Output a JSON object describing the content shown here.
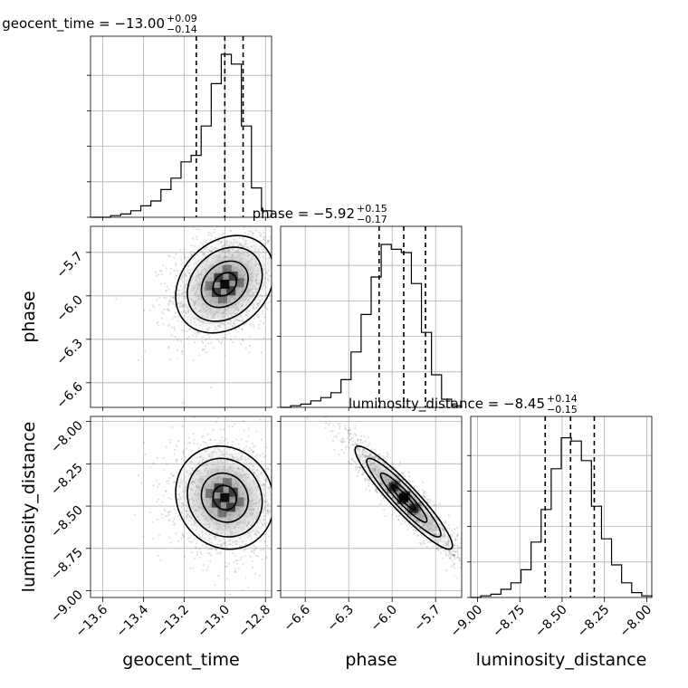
{
  "chart_data": {
    "type": "corner",
    "parameters": [
      "geocent_time",
      "phase",
      "luminosity_distance"
    ],
    "titles": [
      {
        "param": "geocent_time",
        "prefix": "geocent_time = ",
        "median": "−13.00",
        "upper": "+0.09",
        "lower": "−0.14"
      },
      {
        "param": "phase",
        "prefix": "phase = ",
        "median": "−5.92",
        "upper": "+0.15",
        "lower": "−0.17"
      },
      {
        "param": "luminosity_distance",
        "prefix": "luminosity_distance = ",
        "median": "−8.45",
        "upper": "+0.14",
        "lower": "−0.15"
      }
    ],
    "ranges": {
      "geocent_time": [
        -13.66,
        -12.77
      ],
      "phase": [
        -6.77,
        -5.52
      ],
      "luminosity_distance": [
        -9.04,
        -7.97
      ]
    },
    "ticks": {
      "geocent_time": {
        "values": [
          -13.6,
          -13.4,
          -13.2,
          -13.0,
          -12.8
        ],
        "labels": [
          "−13.6",
          "−13.4",
          "−13.2",
          "−13.0",
          "−12.8"
        ]
      },
      "phase": {
        "values": [
          -6.6,
          -6.3,
          -6.0,
          -5.7
        ],
        "labels": [
          "−6.6",
          "−6.3",
          "−6.0",
          "−5.7"
        ]
      },
      "luminosity_distance": {
        "values": [
          -9.0,
          -8.75,
          -8.5,
          -8.25,
          -8.0
        ],
        "labels": [
          "−9.00",
          "−8.75",
          "−8.50",
          "−8.25",
          "−8.00"
        ]
      }
    },
    "quantiles": {
      "geocent_time": [
        -13.14,
        -13.0,
        -12.91
      ],
      "phase": [
        -6.09,
        -5.92,
        -5.77
      ],
      "luminosity_distance": [
        -8.6,
        -8.45,
        -8.31
      ]
    },
    "histograms": {
      "geocent_time": [
        0,
        0,
        0.01,
        0.02,
        0.04,
        0.07,
        0.1,
        0.17,
        0.24,
        0.34,
        0.38,
        0.56,
        0.82,
        1.0,
        0.94,
        0.56,
        0.18,
        0.04
      ],
      "phase": [
        0,
        0.01,
        0.02,
        0.04,
        0.06,
        0.09,
        0.17,
        0.34,
        0.57,
        0.8,
        1.0,
        0.97,
        0.95,
        0.76,
        0.46,
        0.2,
        0.05,
        0.01
      ],
      "luminosity_distance": [
        0,
        0.01,
        0.02,
        0.05,
        0.09,
        0.17,
        0.34,
        0.54,
        0.79,
        0.98,
        0.96,
        0.84,
        0.56,
        0.36,
        0.2,
        0.09,
        0.03,
        0.01
      ]
    },
    "correlations": {
      "phase|geocent_time": 0.25,
      "luminosity_distance|geocent_time": -0.1,
      "luminosity_distance|phase": -0.93
    },
    "grid": true
  },
  "axis_labels": {
    "geocent_time": "geocent_time",
    "phase": "phase",
    "luminosity_distance": "luminosity_distance"
  }
}
